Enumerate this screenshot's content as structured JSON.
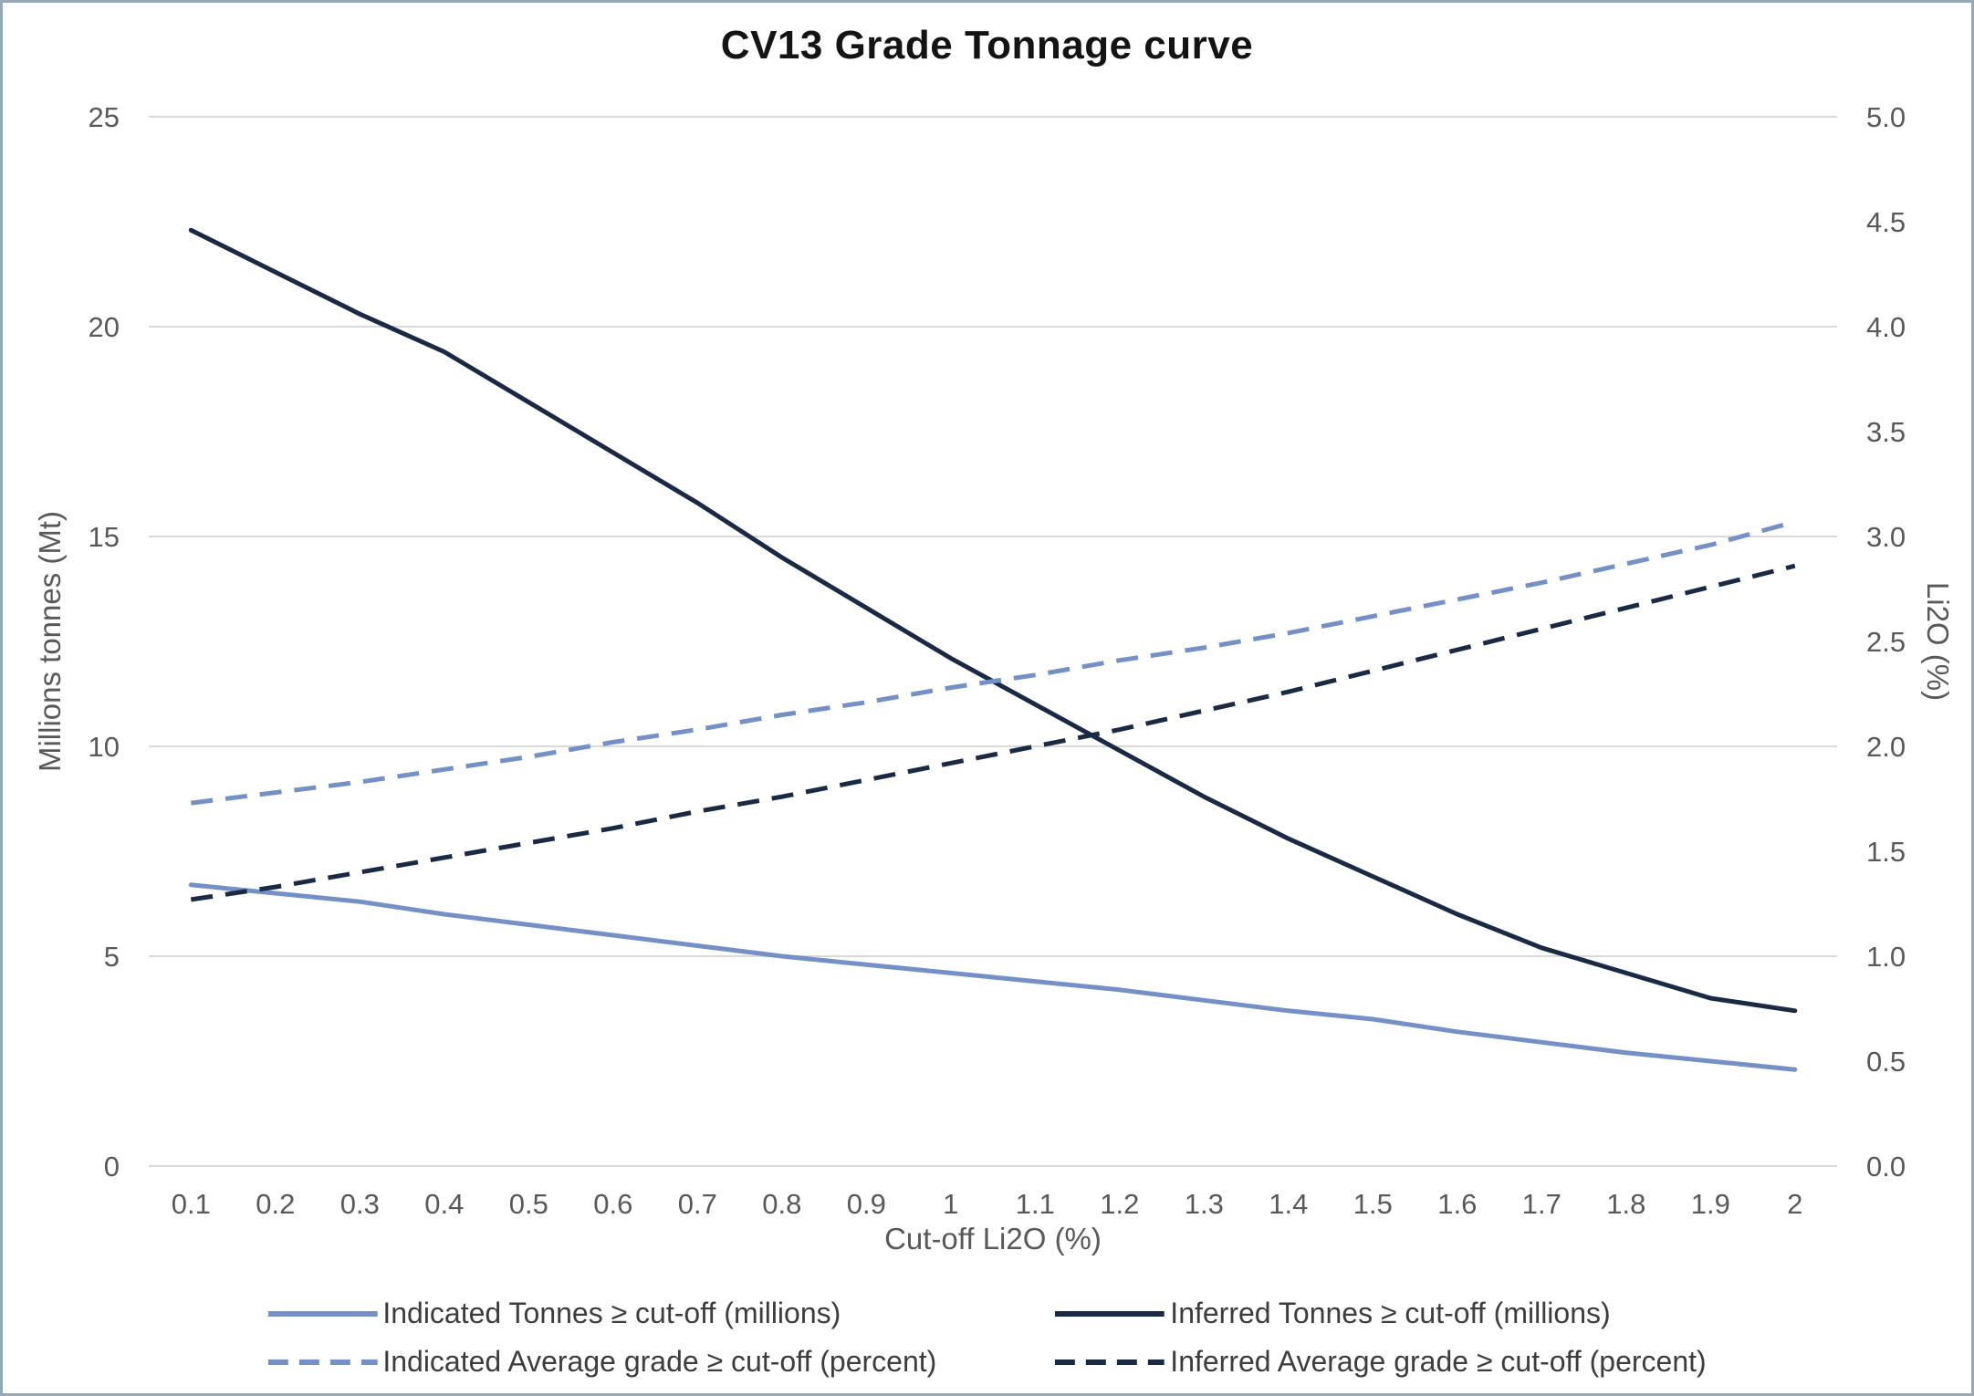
{
  "page": {
    "border_color": "#97a9b5",
    "background_color": "#ffffff"
  },
  "chart_data": {
    "type": "line",
    "title": "CV13 Grade Tonnage curve",
    "xlabel": "Cut-off Li2O (%)",
    "ylabel_left": "Millions tonnes (Mt)",
    "ylabel_right": "Li2O (%)",
    "grid": "horizontal",
    "legend_position": "bottom",
    "x": [
      0.1,
      0.2,
      0.3,
      0.4,
      0.5,
      0.6,
      0.7,
      0.8,
      0.9,
      1.0,
      1.1,
      1.2,
      1.3,
      1.4,
      1.5,
      1.6,
      1.7,
      1.8,
      1.9,
      2.0
    ],
    "x_tick_labels": [
      "0.1",
      "0.2",
      "0.3",
      "0.4",
      "0.5",
      "0.6",
      "0.7",
      "0.8",
      "0.9",
      "1",
      "1.1",
      "1.2",
      "1.3",
      "1.4",
      "1.5",
      "1.6",
      "1.7",
      "1.8",
      "1.9",
      "2"
    ],
    "ylim_left": [
      0,
      25
    ],
    "yticks_left": [
      0,
      5,
      10,
      15,
      20,
      25
    ],
    "ylim_right": [
      0,
      5
    ],
    "ytick_labels_right": [
      "0.0",
      "0.5",
      "1.0",
      "1.5",
      "2.0",
      "2.5",
      "3.0",
      "3.5",
      "4.0",
      "4.5",
      "5.0"
    ],
    "colors": {
      "indicated": "#7590c6",
      "inferred": "#1b2a44",
      "gridline": "#d9d9d9"
    },
    "series": [
      {
        "key": "indicated-tonnes",
        "name": "Indicated Tonnes ≥ cut-off (millions)",
        "axis": "left",
        "style": "solid",
        "color": "#7590c6",
        "values": [
          6.7,
          6.5,
          6.3,
          6.0,
          5.75,
          5.5,
          5.25,
          5.0,
          4.8,
          4.6,
          4.4,
          4.2,
          3.95,
          3.7,
          3.5,
          3.2,
          2.95,
          2.7,
          2.5,
          2.3
        ]
      },
      {
        "key": "inferred-tonnes",
        "name": "Inferred Tonnes ≥ cut-off (millions)",
        "axis": "left",
        "style": "solid",
        "color": "#1b2a44",
        "values": [
          22.3,
          21.3,
          20.3,
          19.4,
          18.2,
          17.0,
          15.8,
          14.5,
          13.3,
          12.1,
          11.0,
          9.9,
          8.8,
          7.8,
          6.9,
          6.0,
          5.2,
          4.6,
          4.0,
          3.7
        ]
      },
      {
        "key": "indicated-grade",
        "name": "Indicated Average grade ≥ cut-off (percent)",
        "axis": "right",
        "style": "dashed",
        "color": "#7590c6",
        "values": [
          1.73,
          1.78,
          1.83,
          1.89,
          1.95,
          2.02,
          2.08,
          2.15,
          2.21,
          2.28,
          2.34,
          2.41,
          2.47,
          2.54,
          2.62,
          2.7,
          2.78,
          2.87,
          2.96,
          3.07
        ]
      },
      {
        "key": "inferred-grade",
        "name": "Inferred Average grade ≥ cut-off (percent)",
        "axis": "right",
        "style": "dashed",
        "color": "#1b2a44",
        "values": [
          1.27,
          1.33,
          1.4,
          1.47,
          1.54,
          1.61,
          1.69,
          1.76,
          1.84,
          1.92,
          2.0,
          2.08,
          2.17,
          2.26,
          2.36,
          2.46,
          2.56,
          2.66,
          2.76,
          2.86
        ]
      }
    ]
  }
}
